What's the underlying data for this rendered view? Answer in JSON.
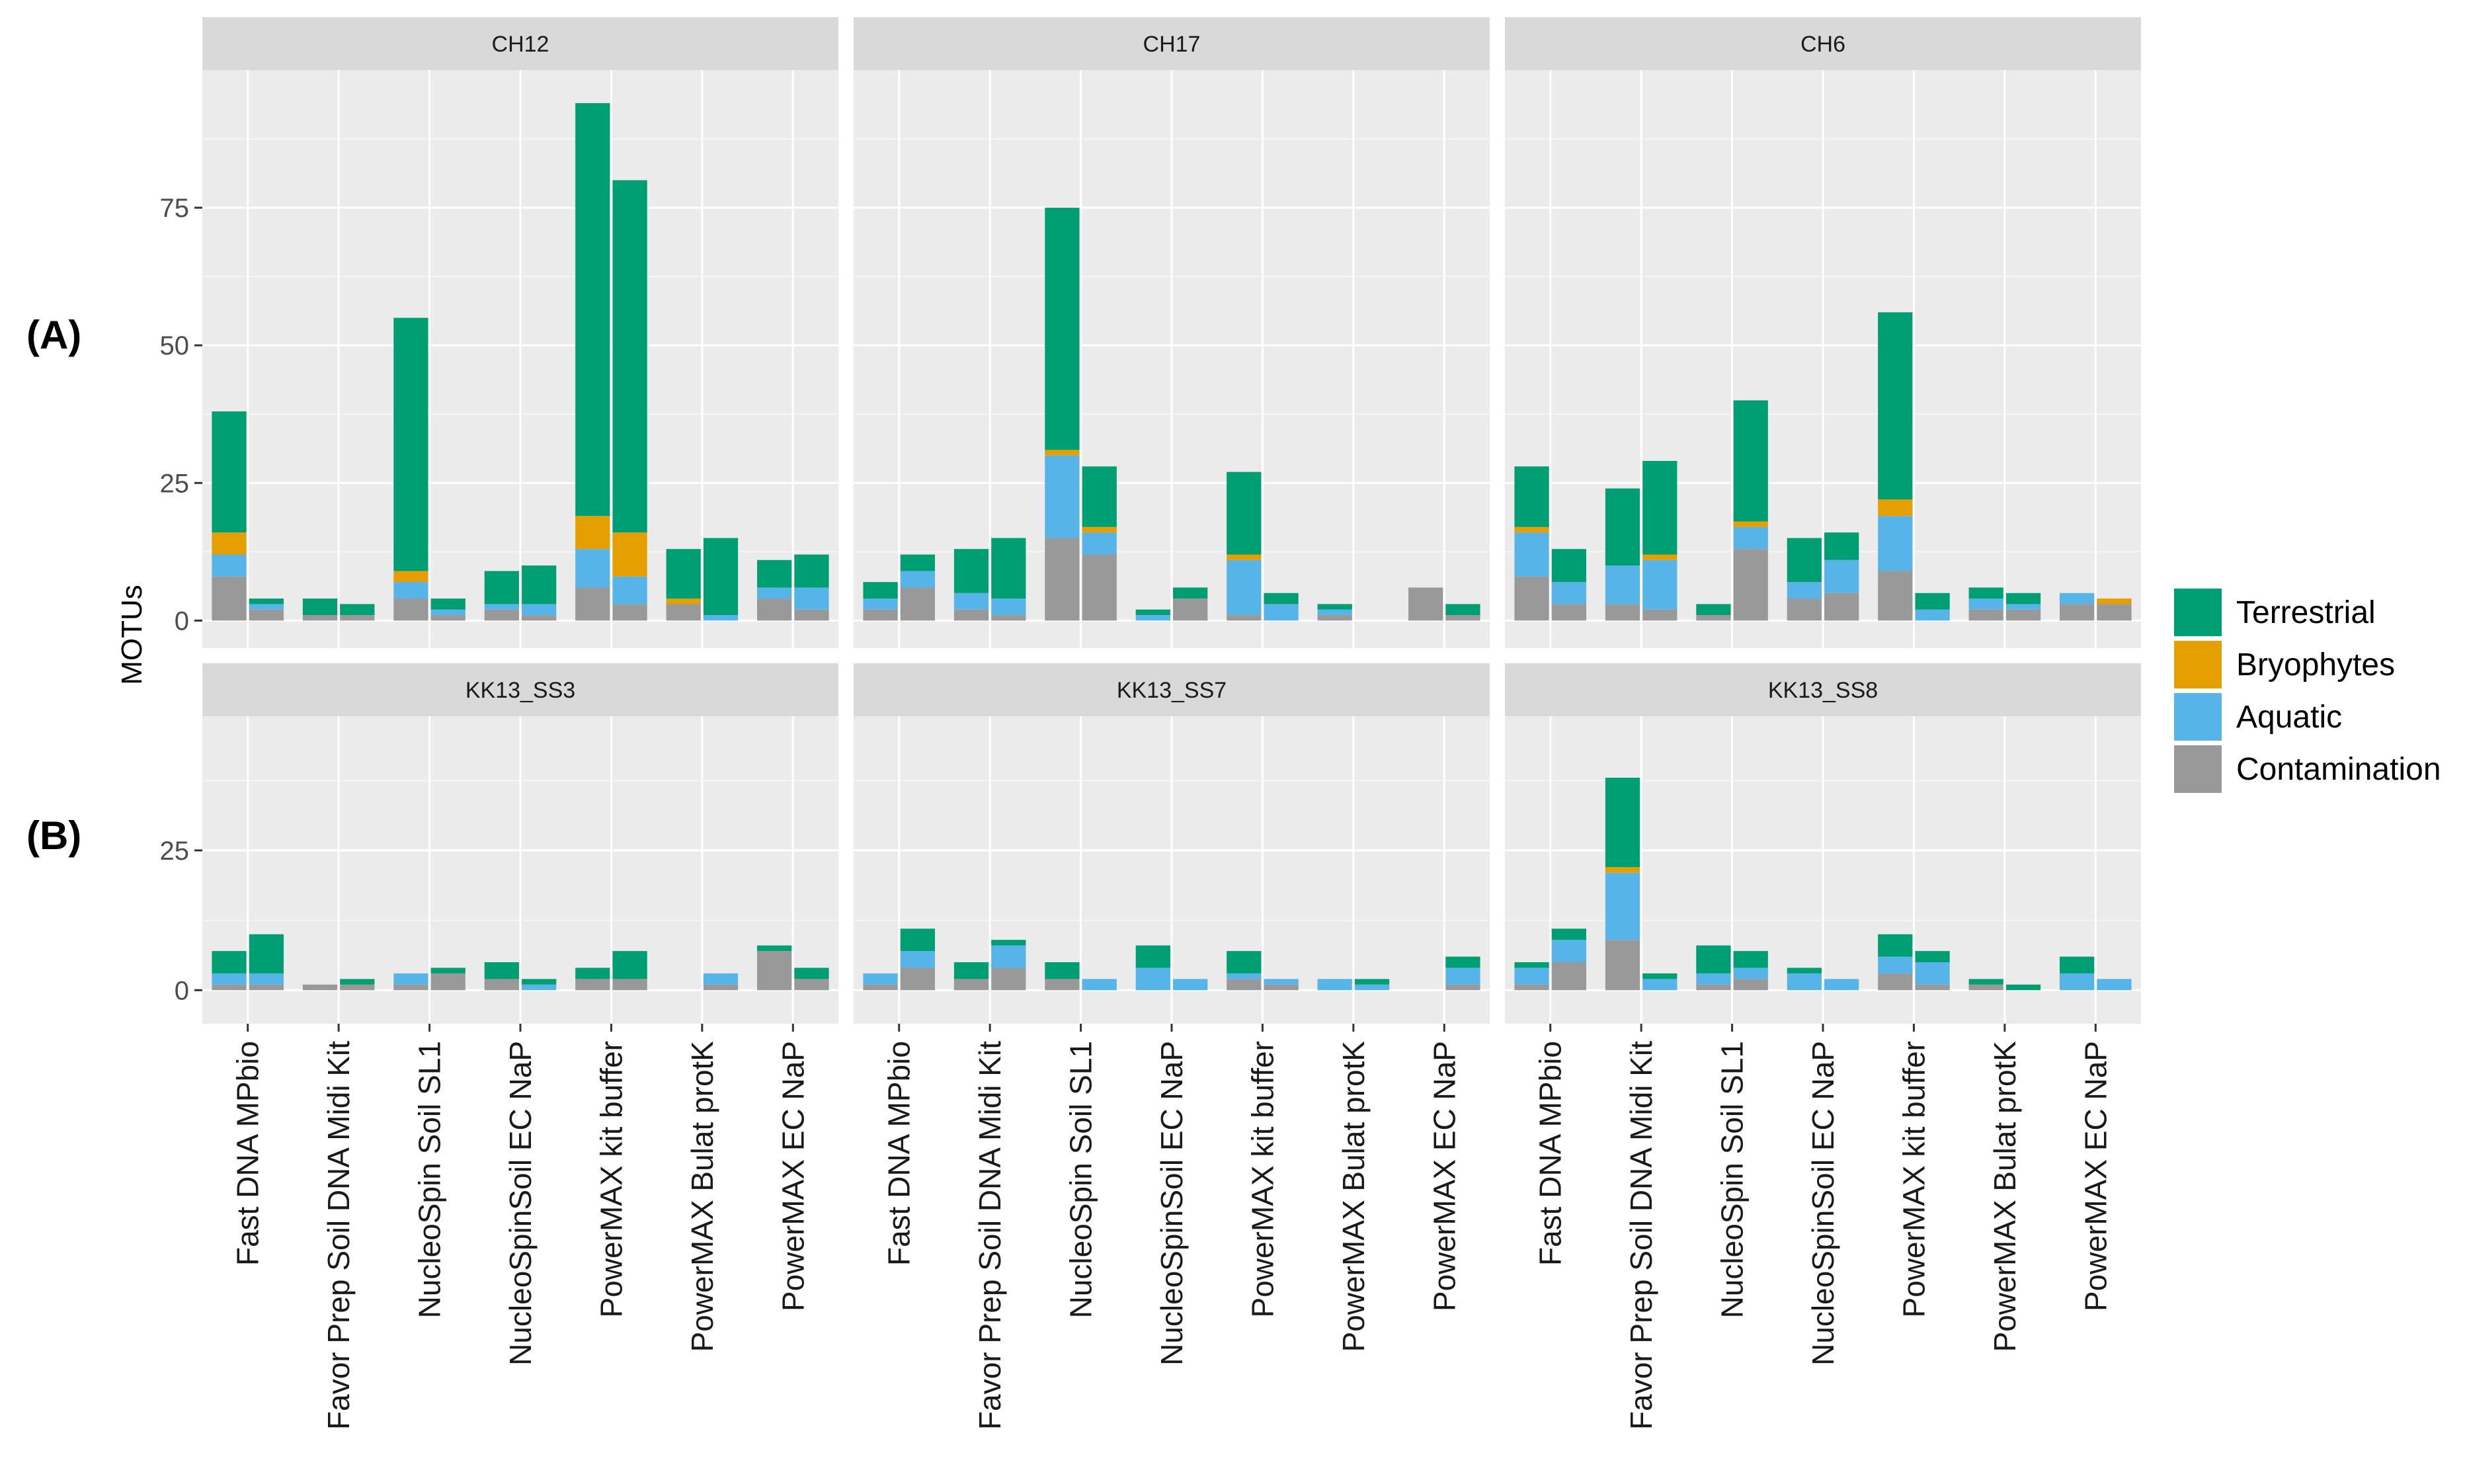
{
  "chart_data": {
    "type": "bar",
    "stacked": true,
    "ylabel": "MOTUs",
    "row_labels": [
      "(A)",
      "(B)"
    ],
    "categories": [
      "Fast DNA MPbio",
      "Favor Prep Soil DNA Midi Kit",
      "NucleoSpin Soil SL1",
      "NucleoSpinSoil EC NaP",
      "PowerMAX kit buffer",
      "PowerMAX Bulat protK",
      "PowerMAX EC NaP"
    ],
    "series_names": [
      "Terrestrial",
      "Bryophytes",
      "Aquatic",
      "Contamination"
    ],
    "colors": {
      "Terrestrial": "#009E73",
      "Bryophytes": "#E69F00",
      "Aquatic": "#56B4E9",
      "Contamination": "#999999"
    },
    "rows": [
      {
        "ylim": [
          -5,
          100
        ],
        "yticks": [
          0,
          25,
          50,
          75
        ],
        "panels": [
          {
            "title": "CH12",
            "bars": [
              [
                [
                  8,
                  4,
                  4,
                  22
                ],
                [
                  2,
                  1,
                  0,
                  1
                ]
              ],
              [
                [
                  1,
                  0,
                  0,
                  3
                ],
                [
                  1,
                  0,
                  0,
                  2
                ]
              ],
              [
                [
                  4,
                  3,
                  2,
                  46
                ],
                [
                  1,
                  1,
                  0,
                  2
                ]
              ],
              [
                [
                  2,
                  1,
                  0,
                  6
                ],
                [
                  1,
                  2,
                  0,
                  7
                ]
              ],
              [
                [
                  6,
                  7,
                  6,
                  75
                ],
                [
                  3,
                  5,
                  8,
                  64
                ]
              ],
              [
                [
                  3,
                  0,
                  1,
                  9
                ],
                [
                  0,
                  1,
                  0,
                  14
                ]
              ],
              [
                [
                  4,
                  2,
                  0,
                  5
                ],
                [
                  2,
                  4,
                  0,
                  6
                ]
              ]
            ]
          },
          {
            "title": "CH17",
            "bars": [
              [
                [
                  2,
                  2,
                  0,
                  3
                ],
                [
                  6,
                  3,
                  0,
                  3
                ]
              ],
              [
                [
                  2,
                  3,
                  0,
                  8
                ],
                [
                  1,
                  3,
                  0,
                  11
                ]
              ],
              [
                [
                  15,
                  15,
                  1,
                  44
                ],
                [
                  12,
                  4,
                  1,
                  11
                ]
              ],
              [
                [
                  0,
                  1,
                  0,
                  1
                ],
                [
                  4,
                  0,
                  0,
                  2
                ]
              ],
              [
                [
                  1,
                  10,
                  1,
                  15
                ],
                [
                  0,
                  3,
                  0,
                  2
                ]
              ],
              [
                [
                  1,
                  1,
                  0,
                  1
                ],
                [
                  0,
                  0,
                  0,
                  0
                ]
              ],
              [
                [
                  6,
                  0,
                  0,
                  0
                ],
                [
                  1,
                  0,
                  0,
                  2
                ]
              ]
            ]
          },
          {
            "title": "CH6",
            "bars": [
              [
                [
                  8,
                  8,
                  1,
                  11
                ],
                [
                  3,
                  4,
                  0,
                  6
                ]
              ],
              [
                [
                  3,
                  7,
                  0,
                  14
                ],
                [
                  2,
                  9,
                  1,
                  17
                ]
              ],
              [
                [
                  1,
                  0,
                  0,
                  2
                ],
                [
                  13,
                  4,
                  1,
                  22
                ]
              ],
              [
                [
                  4,
                  3,
                  0,
                  8
                ],
                [
                  5,
                  6,
                  0,
                  5
                ]
              ],
              [
                [
                  9,
                  10,
                  3,
                  34
                ],
                [
                  0,
                  2,
                  0,
                  3
                ]
              ],
              [
                [
                  2,
                  2,
                  0,
                  2
                ],
                [
                  2,
                  1,
                  0,
                  2
                ]
              ],
              [
                [
                  3,
                  2,
                  0,
                  0
                ],
                [
                  3,
                  0,
                  1,
                  0
                ]
              ]
            ]
          }
        ]
      },
      {
        "ylim": [
          -6,
          49
        ],
        "yticks": [
          0,
          25
        ],
        "panels": [
          {
            "title": "KK13_SS3",
            "bars": [
              [
                [
                  1,
                  2,
                  0,
                  4
                ],
                [
                  1,
                  2,
                  0,
                  7
                ]
              ],
              [
                [
                  1,
                  0,
                  0,
                  0
                ],
                [
                  1,
                  0,
                  0,
                  1
                ]
              ],
              [
                [
                  1,
                  2,
                  0,
                  0
                ],
                [
                  3,
                  0,
                  0,
                  1
                ]
              ],
              [
                [
                  2,
                  0,
                  0,
                  3
                ],
                [
                  0,
                  1,
                  0,
                  1
                ]
              ],
              [
                [
                  2,
                  0,
                  0,
                  2
                ],
                [
                  2,
                  0,
                  0,
                  5
                ]
              ],
              [
                [
                  0,
                  0,
                  0,
                  0
                ],
                [
                  1,
                  2,
                  0,
                  0
                ]
              ],
              [
                [
                  7,
                  0,
                  0,
                  1
                ],
                [
                  2,
                  0,
                  0,
                  2
                ]
              ]
            ]
          },
          {
            "title": "KK13_SS7",
            "bars": [
              [
                [
                  1,
                  2,
                  0,
                  0
                ],
                [
                  4,
                  3,
                  0,
                  4
                ]
              ],
              [
                [
                  2,
                  0,
                  0,
                  3
                ],
                [
                  4,
                  4,
                  0,
                  1
                ]
              ],
              [
                [
                  2,
                  0,
                  0,
                  3
                ],
                [
                  0,
                  2,
                  0,
                  0
                ]
              ],
              [
                [
                  0,
                  4,
                  0,
                  4
                ],
                [
                  0,
                  2,
                  0,
                  0
                ]
              ],
              [
                [
                  2,
                  1,
                  0,
                  4
                ],
                [
                  1,
                  1,
                  0,
                  0
                ]
              ],
              [
                [
                  0,
                  2,
                  0,
                  0
                ],
                [
                  0,
                  1,
                  0,
                  1
                ]
              ],
              [
                [
                  0,
                  0,
                  0,
                  0
                ],
                [
                  1,
                  3,
                  0,
                  2
                ]
              ]
            ]
          },
          {
            "title": "KK13_SS8",
            "bars": [
              [
                [
                  1,
                  3,
                  0,
                  1
                ],
                [
                  5,
                  4,
                  0,
                  2
                ]
              ],
              [
                [
                  9,
                  12,
                  1,
                  16
                ],
                [
                  0,
                  2,
                  0,
                  1
                ]
              ],
              [
                [
                  1,
                  2,
                  0,
                  5
                ],
                [
                  2,
                  2,
                  0,
                  3
                ]
              ],
              [
                [
                  0,
                  3,
                  0,
                  1
                ],
                [
                  0,
                  2,
                  0,
                  0
                ]
              ],
              [
                [
                  3,
                  3,
                  0,
                  4
                ],
                [
                  1,
                  4,
                  0,
                  2
                ]
              ],
              [
                [
                  1,
                  0,
                  0,
                  1
                ],
                [
                  0,
                  0,
                  0,
                  1
                ]
              ],
              [
                [
                  0,
                  3,
                  0,
                  3
                ],
                [
                  0,
                  2,
                  0,
                  0
                ]
              ]
            ]
          }
        ]
      }
    ]
  }
}
